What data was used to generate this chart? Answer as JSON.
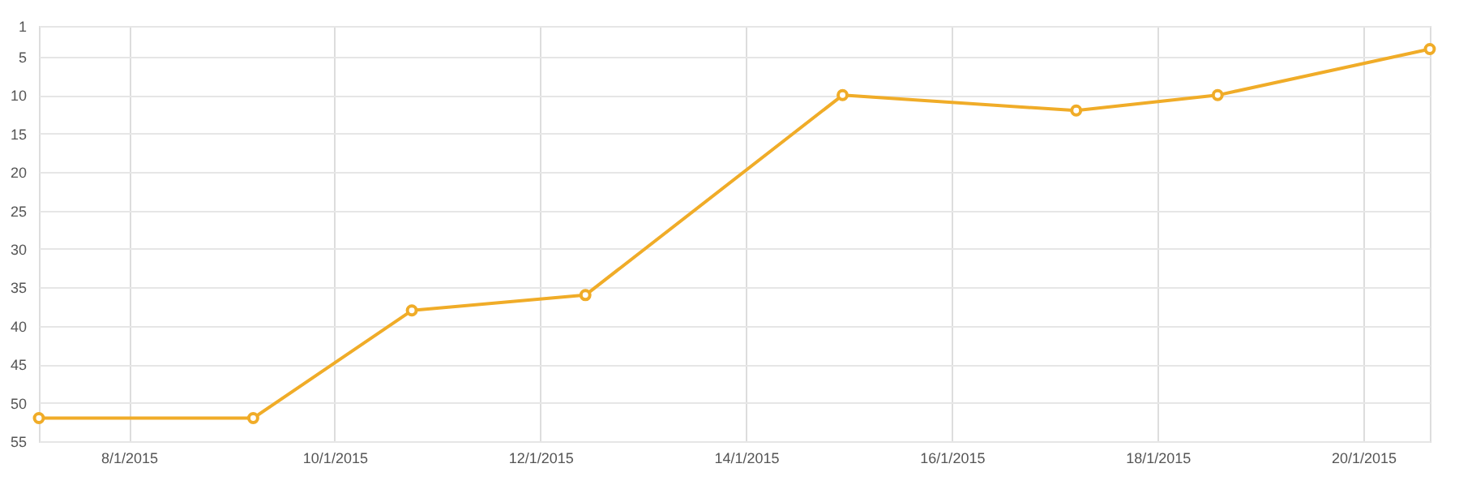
{
  "chart_data": {
    "type": "line",
    "x": [
      "2015-01-07T03:00",
      "2015-01-09T05:00",
      "2015-01-10T18:00",
      "2015-01-12T10:30",
      "2015-01-14T22:30",
      "2015-01-17T05:00",
      "2015-01-18T14:00",
      "2015-01-20T15:30"
    ],
    "series": [
      {
        "color": "#f0ac28",
        "values": [
          52,
          52,
          38,
          36,
          10,
          12,
          10,
          4
        ]
      }
    ],
    "xlim": [
      "2015-01-07T03:00",
      "2015-01-20T15:30"
    ],
    "xticks": [
      {
        "value": "2015-01-08",
        "label": "8/1/2015"
      },
      {
        "value": "2015-01-10",
        "label": "10/1/2015"
      },
      {
        "value": "2015-01-12",
        "label": "12/1/2015"
      },
      {
        "value": "2015-01-14",
        "label": "14/1/2015"
      },
      {
        "value": "2015-01-16",
        "label": "16/1/2015"
      },
      {
        "value": "2015-01-18",
        "label": "18/1/2015"
      },
      {
        "value": "2015-01-20",
        "label": "20/1/2015"
      }
    ],
    "ylim": [
      55,
      1
    ],
    "yticks": [
      1,
      5,
      10,
      15,
      20,
      25,
      30,
      35,
      40,
      45,
      50,
      55
    ],
    "grid": true,
    "marker": "circle",
    "line_style": "solid"
  }
}
